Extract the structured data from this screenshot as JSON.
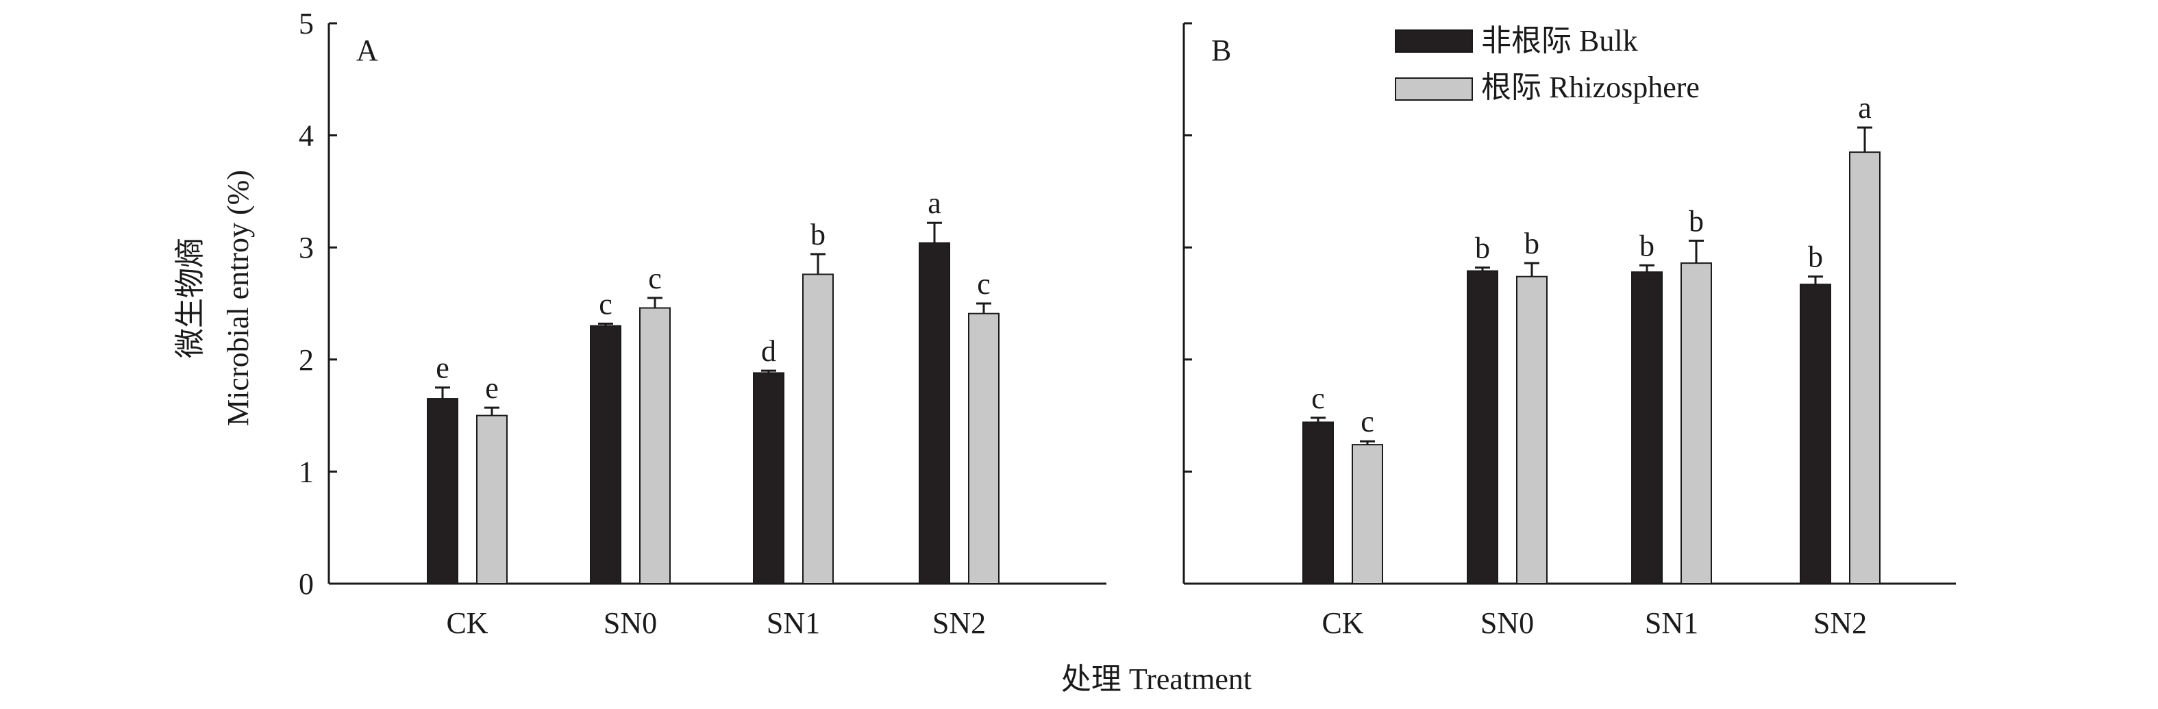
{
  "figure": {
    "ylabel_cn": "微生物熵",
    "ylabel_en": "Microbial entroy (%)",
    "xlabel": "处理 Treatment"
  },
  "legend": {
    "placement": "top, inside panel B",
    "items": [
      {
        "label": "非根际 Bulk",
        "color": "#231f20"
      },
      {
        "label": "根际 Rhizosphere",
        "color": "#c8c8c8"
      }
    ]
  },
  "colors": {
    "bulk": "#231f20",
    "rhizosphere": "#c8c8c8",
    "axis": "#1a1a1a"
  },
  "chart_data": [
    {
      "type": "bar",
      "panel_label": "A",
      "categories": [
        "CK",
        "SN0",
        "SN1",
        "SN2"
      ],
      "ylim": [
        0,
        5
      ],
      "yticks": [
        0,
        1,
        2,
        3,
        4,
        5
      ],
      "grid": false,
      "series": [
        {
          "name": "非根际 Bulk",
          "values": [
            1.65,
            2.3,
            1.88,
            3.04
          ],
          "errors": [
            0.1,
            0.02,
            0.02,
            0.18
          ],
          "letters": [
            "e",
            "c",
            "d",
            "a"
          ]
        },
        {
          "name": "根际 Rhizosphere",
          "values": [
            1.5,
            2.46,
            2.76,
            2.41
          ],
          "errors": [
            0.07,
            0.09,
            0.18,
            0.09
          ],
          "letters": [
            "e",
            "c",
            "b",
            "c"
          ]
        }
      ]
    },
    {
      "type": "bar",
      "panel_label": "B",
      "categories": [
        "CK",
        "SN0",
        "SN1",
        "SN2"
      ],
      "ylim": [
        0,
        5
      ],
      "yticks": [
        0,
        1,
        2,
        3,
        4,
        5
      ],
      "grid": false,
      "series": [
        {
          "name": "非根际 Bulk",
          "values": [
            1.44,
            2.79,
            2.78,
            2.67
          ],
          "errors": [
            0.04,
            0.03,
            0.06,
            0.07
          ],
          "letters": [
            "c",
            "b",
            "b",
            "b"
          ]
        },
        {
          "name": "根际 Rhizosphere",
          "values": [
            1.24,
            2.74,
            2.86,
            3.85
          ],
          "errors": [
            0.03,
            0.12,
            0.2,
            0.22
          ],
          "letters": [
            "c",
            "b",
            "b",
            "a"
          ]
        }
      ]
    }
  ]
}
